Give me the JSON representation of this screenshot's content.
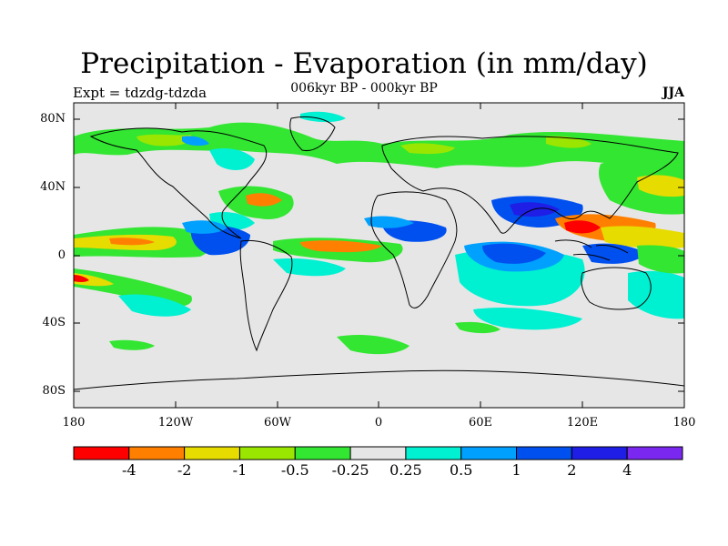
{
  "header": {
    "title": "Precipitation - Evaporation (in mm/day)",
    "subtitle": "006kyr BP - 000kyr BP",
    "left_label": "Expt = tdzdg-tdzda",
    "right_label": "JJA"
  },
  "map": {
    "lat_ticks": [
      "80N",
      "40N",
      "0",
      "40S",
      "80S"
    ],
    "lon_ticks": [
      "180",
      "120W",
      "60W",
      "0",
      "60E",
      "120E",
      "180"
    ],
    "background_color": "#e6e6e6",
    "coastline_color": "#000000"
  },
  "colorbar": {
    "colors": [
      "#ff0000",
      "#ff8000",
      "#e6dc00",
      "#9be600",
      "#32e632",
      "#e6e6e6",
      "#00f0d2",
      "#00a0ff",
      "#0050f0",
      "#1e1ee6",
      "#7a28f0"
    ],
    "labels": [
      "-4",
      "-2",
      "-1",
      "-0.5",
      "-0.25",
      "0.25",
      "0.5",
      "1",
      "2",
      "4"
    ]
  }
}
